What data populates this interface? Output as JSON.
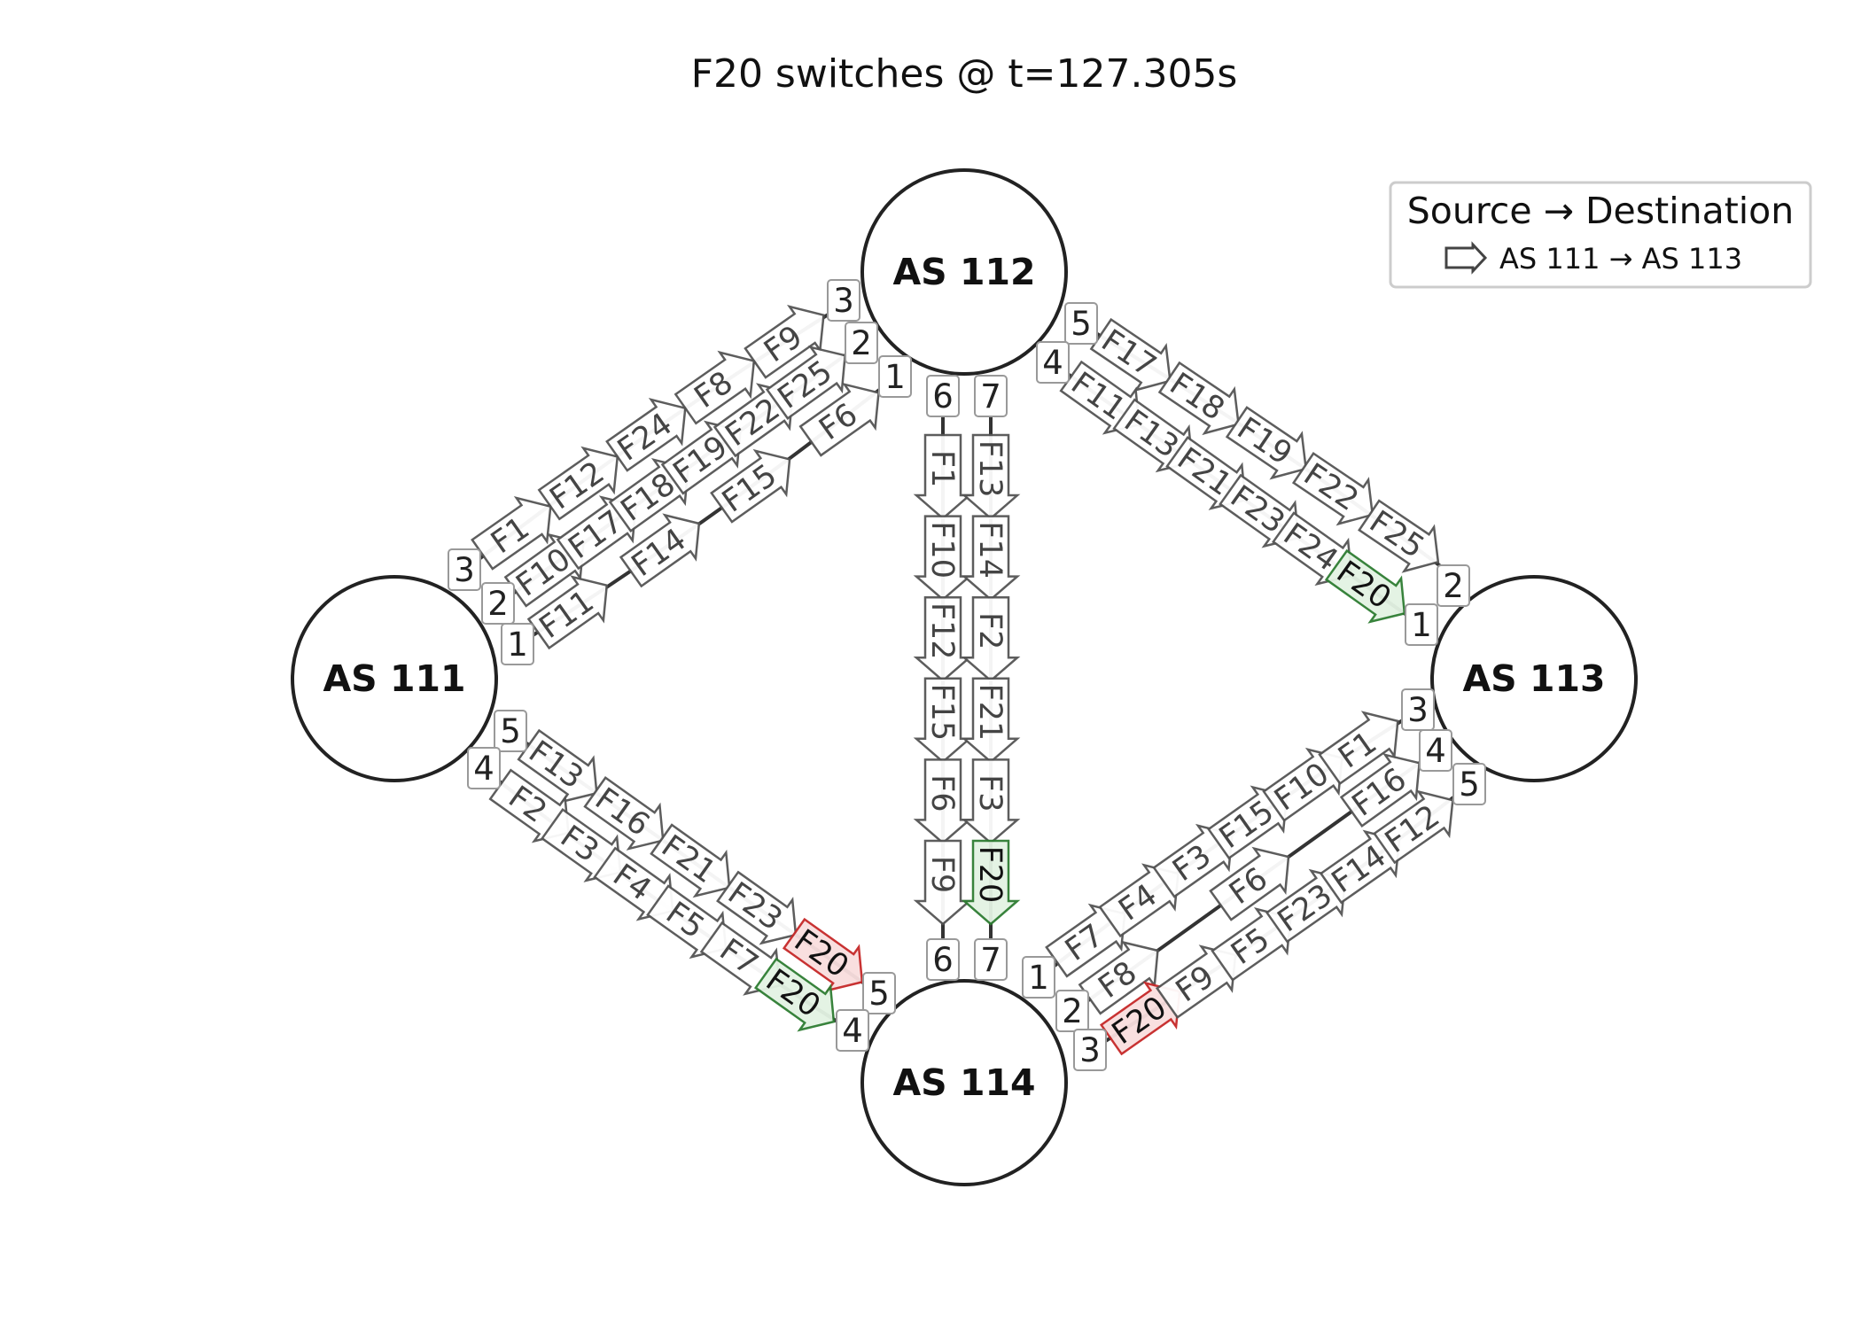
{
  "title": "F20 switches @ t=127.305s",
  "legend": {
    "title": "Source → Destination",
    "entry": "AS 111 → AS 113"
  },
  "colors": {
    "link": "#333333",
    "node_stroke": "#222222",
    "flow_default_fill": "#ffffff",
    "flow_default_stroke": "#555555",
    "flow_default_text": "#444444",
    "flow_new_fill": "#e3f3e3",
    "flow_new_stroke": "#2e7d32",
    "flow_old_fill": "#f9dede",
    "flow_old_stroke": "#c62828"
  },
  "nodes": [
    {
      "id": "as111",
      "label": "AS 111"
    },
    {
      "id": "as112",
      "label": "AS 112"
    },
    {
      "id": "as113",
      "label": "AS 113"
    },
    {
      "id": "as114",
      "label": "AS 114"
    }
  ],
  "links": [
    {
      "id": "L111-112-3",
      "a": "as111",
      "a_port": "3",
      "b": "as112",
      "b_port": "3",
      "flows": [
        {
          "label": "F1"
        },
        {
          "label": "F12"
        },
        {
          "label": "F24"
        },
        {
          "label": "F8"
        },
        {
          "label": "F9"
        }
      ]
    },
    {
      "id": "L111-112-2",
      "a": "as111",
      "a_port": "2",
      "b": "as112",
      "b_port": "2",
      "flows": [
        {
          "label": "F10"
        },
        {
          "label": "F17"
        },
        {
          "label": "F18"
        },
        {
          "label": "F19"
        },
        {
          "label": "F22"
        },
        {
          "label": "F25"
        }
      ]
    },
    {
      "id": "L111-112-1",
      "a": "as111",
      "a_port": "1",
      "b": "as112",
      "b_port": "1",
      "flows": [
        {
          "label": "F11"
        },
        {
          "label": "F14"
        },
        {
          "label": "F15"
        },
        {
          "label": "F6"
        }
      ]
    },
    {
      "id": "L112-113-5",
      "a": "as112",
      "a_port": "5",
      "b": "as113",
      "b_port": "2",
      "flows": [
        {
          "label": "F17"
        },
        {
          "label": "F18"
        },
        {
          "label": "F19"
        },
        {
          "label": "F22"
        },
        {
          "label": "F25"
        }
      ]
    },
    {
      "id": "L112-113-4",
      "a": "as112",
      "a_port": "4",
      "b": "as113",
      "b_port": "1",
      "flows": [
        {
          "label": "F11"
        },
        {
          "label": "F13"
        },
        {
          "label": "F21"
        },
        {
          "label": "F23"
        },
        {
          "label": "F24"
        },
        {
          "label": "F20",
          "state": "new"
        }
      ]
    },
    {
      "id": "L112-114-6",
      "a": "as112",
      "a_port": "6",
      "b": "as114",
      "b_port": "6",
      "flows": [
        {
          "label": "F1"
        },
        {
          "label": "F10"
        },
        {
          "label": "F12"
        },
        {
          "label": "F15"
        },
        {
          "label": "F6"
        },
        {
          "label": "F9"
        }
      ]
    },
    {
      "id": "L112-114-7",
      "a": "as112",
      "a_port": "7",
      "b": "as114",
      "b_port": "7",
      "flows": [
        {
          "label": "F13"
        },
        {
          "label": "F14"
        },
        {
          "label": "F2"
        },
        {
          "label": "F21"
        },
        {
          "label": "F3"
        },
        {
          "label": "F20",
          "state": "new"
        }
      ]
    },
    {
      "id": "L111-114-5",
      "a": "as111",
      "a_port": "5",
      "b": "as114",
      "b_port": "5",
      "flows": [
        {
          "label": "F13"
        },
        {
          "label": "F16"
        },
        {
          "label": "F21"
        },
        {
          "label": "F23"
        },
        {
          "label": "F20",
          "state": "old"
        }
      ]
    },
    {
      "id": "L111-114-4",
      "a": "as111",
      "a_port": "4",
      "b": "as114",
      "b_port": "4",
      "flows": [
        {
          "label": "F2"
        },
        {
          "label": "F3"
        },
        {
          "label": "F4"
        },
        {
          "label": "F5"
        },
        {
          "label": "F7"
        },
        {
          "label": "F20",
          "state": "new"
        }
      ]
    },
    {
      "id": "L114-113-1",
      "a": "as114",
      "a_port": "1",
      "b": "as113",
      "b_port": "3",
      "flows": [
        {
          "label": "F7"
        },
        {
          "label": "F4"
        },
        {
          "label": "F3"
        },
        {
          "label": "F15"
        },
        {
          "label": "F10"
        },
        {
          "label": "F1"
        }
      ]
    },
    {
      "id": "L114-113-2",
      "a": "as114",
      "a_port": "2",
      "b": "as113",
      "b_port": "4",
      "flows": [
        {
          "label": "F8"
        },
        {
          "label": "F6"
        },
        {
          "label": "F16"
        }
      ]
    },
    {
      "id": "L114-113-3",
      "a": "as114",
      "a_port": "3",
      "b": "as113",
      "b_port": "5",
      "flows": [
        {
          "label": "F20",
          "state": "old"
        },
        {
          "label": "F9"
        },
        {
          "label": "F5"
        },
        {
          "label": "F23"
        },
        {
          "label": "F14"
        },
        {
          "label": "F12"
        }
      ]
    }
  ]
}
